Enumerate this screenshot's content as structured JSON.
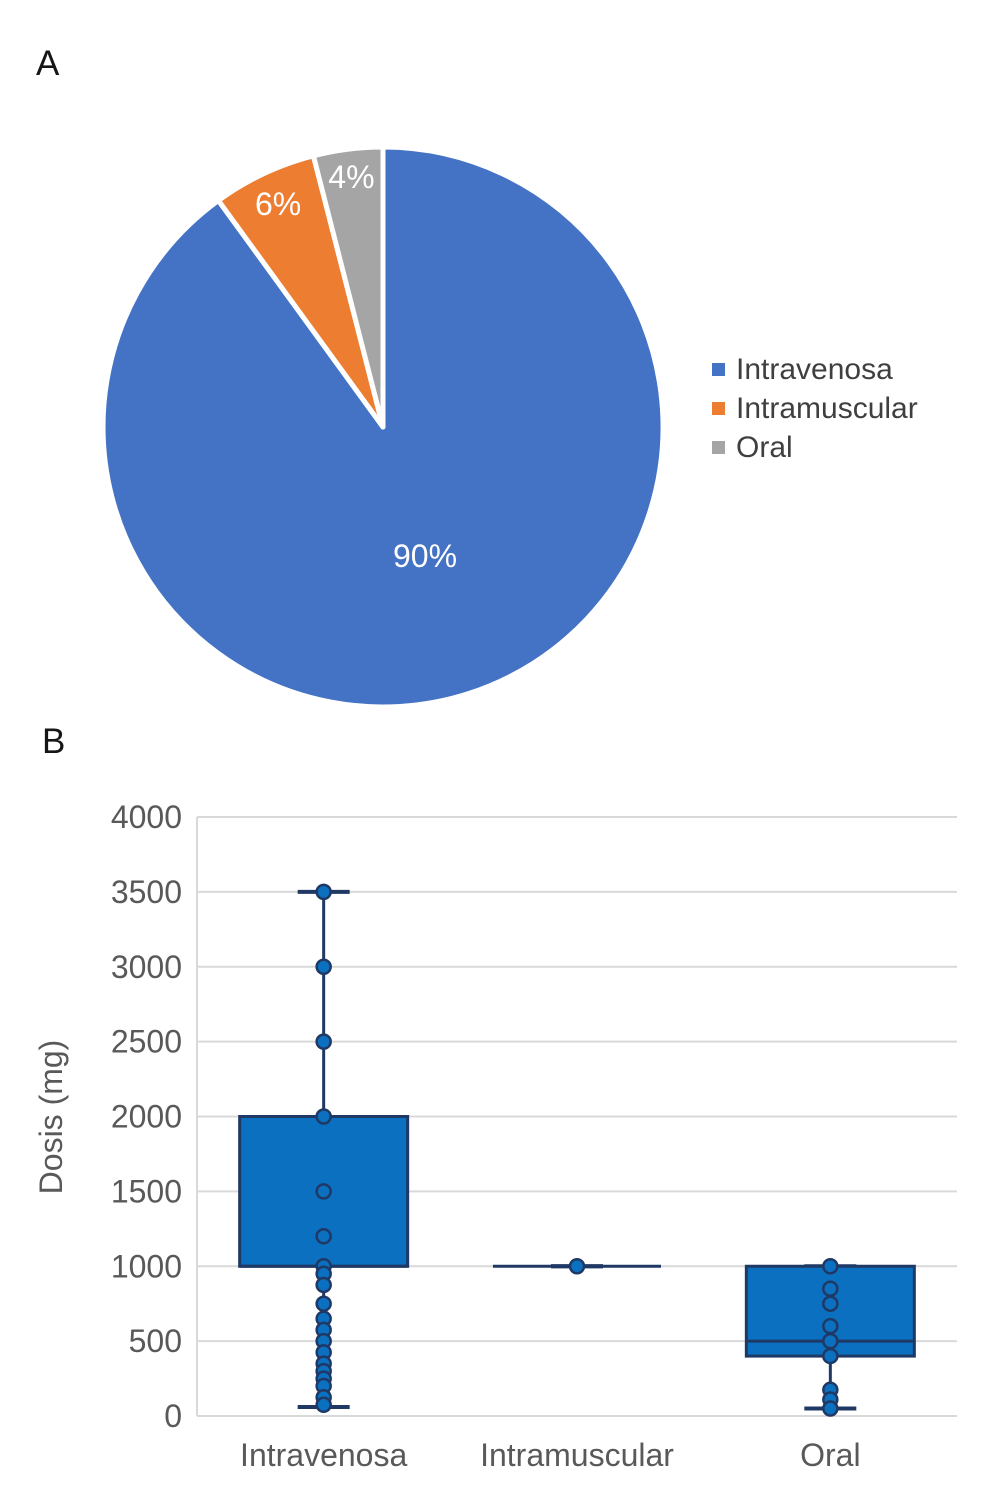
{
  "panels": {
    "a": {
      "label": "A"
    },
    "b": {
      "label": "B"
    }
  },
  "legend": {
    "position": "right",
    "items": [
      {
        "label": "Intravenosa",
        "color": "#4472C4"
      },
      {
        "label": "Intramuscular",
        "color": "#ED7D31"
      },
      {
        "label": "Oral",
        "color": "#A5A5A5"
      }
    ]
  },
  "chart_data": [
    {
      "type": "pie",
      "panel": "A",
      "categories": [
        "Intravenosa",
        "Intramuscular",
        "Oral"
      ],
      "values": [
        90,
        6,
        4
      ],
      "data_labels": [
        "90%",
        "6%",
        "4%"
      ],
      "colors": [
        "#4472C4",
        "#ED7D31",
        "#A5A5A5"
      ],
      "data_label_color": "#FFFFFF",
      "slice_separator_color": "#FFFFFF",
      "legend_position": "right",
      "start_angle_deg": 0,
      "direction": "clockwise"
    },
    {
      "type": "boxplot",
      "panel": "B",
      "title": "",
      "xlabel": "",
      "ylabel": "Dosis (mg)",
      "ylim": [
        0,
        4000
      ],
      "yticks": [
        0,
        500,
        1000,
        1500,
        2000,
        2500,
        3000,
        3500,
        4000
      ],
      "grid": true,
      "categories": [
        "Intravenosa",
        "Intramuscular",
        "Oral"
      ],
      "series": [
        {
          "name": "Intravenosa",
          "q1": 1000,
          "median": 1000,
          "q3": 2000,
          "whisker_low": 60,
          "whisker_high": 3500,
          "points": [
            3500,
            3000,
            2500,
            2000,
            1500,
            1200,
            1000,
            950,
            875,
            750,
            650,
            575,
            500,
            425,
            350,
            300,
            250,
            200,
            125,
            75
          ]
        },
        {
          "name": "Intramuscular",
          "q1": 1000,
          "median": 1000,
          "q3": 1000,
          "whisker_low": 1000,
          "whisker_high": 1000,
          "points": [
            1000
          ]
        },
        {
          "name": "Oral",
          "q1": 400,
          "median": 500,
          "q3": 1000,
          "whisker_low": 50,
          "whisker_high": 1000,
          "points": [
            1000,
            850,
            750,
            600,
            500,
            400,
            175,
            110,
            50
          ]
        }
      ],
      "colors": {
        "box_fill": "#0B70C0",
        "box_border": "#1F3864",
        "whisker": "#1F3864",
        "point_fill": "#0B70C0",
        "point_border": "#1F3864",
        "gridline": "#D9D9D9",
        "tick_text": "#595959"
      }
    }
  ]
}
